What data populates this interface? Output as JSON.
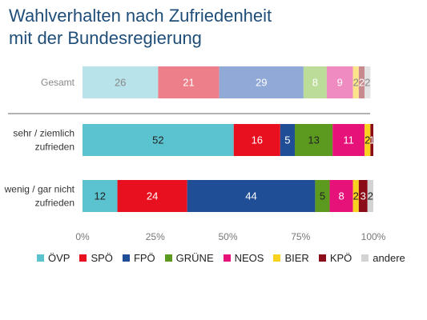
{
  "title_lines": [
    "Wahlverhalten nach Zufriedenheit",
    "mit der Bundesregierung"
  ],
  "chart_data": {
    "type": "bar",
    "orientation": "horizontal",
    "stacked": true,
    "categories": [
      "Gesamt",
      "sehr / ziemlich zufrieden",
      "wenig / gar nicht zufrieden"
    ],
    "category_label_lines": [
      [
        "Gesamt"
      ],
      [
        "sehr / ziemlich",
        "zufrieden"
      ],
      [
        "wenig / gar nicht",
        "zufrieden"
      ]
    ],
    "series": [
      {
        "name": "ÖVP",
        "values": [
          26,
          52,
          12
        ],
        "labels": [
          "26",
          "52",
          "12"
        ],
        "color": "#5bc2cf",
        "color_faded": "#b9e3ea"
      },
      {
        "name": "SPÖ",
        "values": [
          21,
          16,
          24
        ],
        "labels": [
          "21",
          "16",
          "24"
        ],
        "color": "#e8101f",
        "color_faded": "#ec7f8a"
      },
      {
        "name": "FPÖ",
        "values": [
          29,
          5,
          44
        ],
        "labels": [
          "29",
          "5",
          "44"
        ],
        "color": "#1f4e96",
        "color_faded": "#90a9d6"
      },
      {
        "name": "GRÜNE",
        "values": [
          8,
          13,
          5
        ],
        "labels": [
          "8",
          "13",
          "5"
        ],
        "color": "#5b9a1f",
        "color_faded": "#bcdc9a"
      },
      {
        "name": "NEOS",
        "values": [
          9,
          11,
          8
        ],
        "labels": [
          "9",
          "11",
          "8"
        ],
        "color": "#e6127a",
        "color_faded": "#f08bc1"
      },
      {
        "name": "BIER",
        "values": [
          2,
          2,
          2
        ],
        "labels": [
          "2",
          "2",
          "2"
        ],
        "color": "#f9d21f",
        "color_faded": "#fbe48a"
      },
      {
        "name": "KPÖ",
        "values": [
          2,
          1,
          3
        ],
        "labels": [
          "2",
          "1",
          "3"
        ],
        "color": "#8b0c18",
        "color_faded": "#c98a8f"
      },
      {
        "name": "andere",
        "values": [
          2,
          0,
          2
        ],
        "labels": [
          "2",
          "",
          "2"
        ],
        "color": "#d3d3d3",
        "color_faded": "#e3e3e3"
      }
    ],
    "faded_rows": [
      0
    ],
    "xlim": [
      0,
      100
    ],
    "x_ticks": [
      0,
      25,
      50,
      75,
      100
    ],
    "x_tick_labels": [
      "0%",
      "25%",
      "50%",
      "75%",
      "100%"
    ],
    "legend_position": "bottom",
    "grid": false
  }
}
